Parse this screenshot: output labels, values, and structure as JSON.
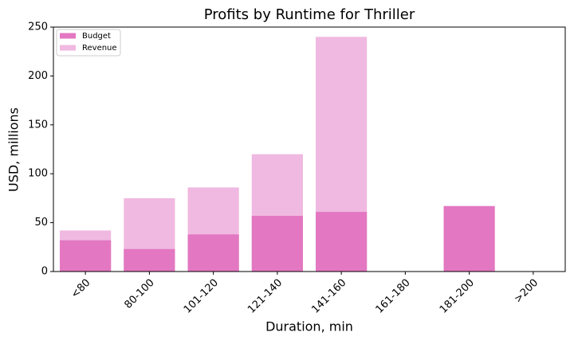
{
  "chart_data": {
    "type": "bar",
    "title": "Profits by Runtime for Thriller",
    "x_label": "Duration, min",
    "y_label": "USD, millions",
    "categories": [
      "<80",
      "80-100",
      "101-120",
      "121-140",
      "141-160",
      "161-180",
      "181-200",
      ">200"
    ],
    "series": [
      {
        "name": "Budget",
        "color": "#e377c2",
        "values": [
          32,
          23,
          38,
          57,
          61,
          null,
          67,
          null
        ]
      },
      {
        "name": "Revenue",
        "color": "#f0b9e1",
        "values": [
          42,
          75,
          86,
          120,
          240,
          null,
          null,
          null
        ]
      }
    ],
    "ylim": [
      0,
      250
    ],
    "yticks": [
      0,
      50,
      100,
      150,
      200,
      250
    ],
    "legend": "upper-left"
  }
}
